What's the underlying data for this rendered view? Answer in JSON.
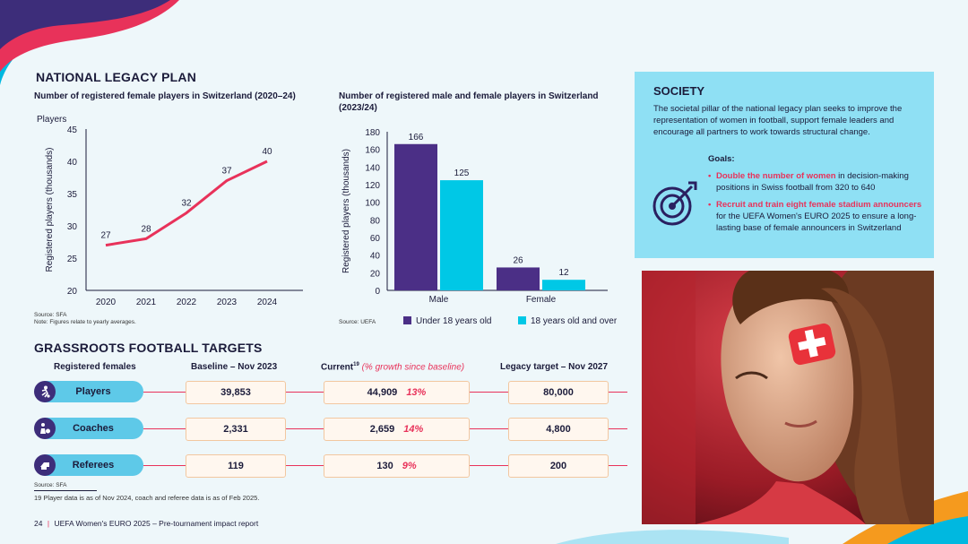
{
  "national": {
    "section_title": "NATIONAL LEGACY PLAN",
    "chart1_title": "Number of registered female players in Switzerland (2020–24)",
    "chart1_players_label": "Players",
    "chart1_source": "Source: SFA",
    "chart1_note": "Note: Figures relate to yearly averages.",
    "chart2_title_line1": "Number of registered male and female players in Switzerland",
    "chart2_title_line2": "(2023/24)",
    "chart2_source": "Source: UEFA"
  },
  "chart_data": [
    {
      "type": "line",
      "title": "Number of registered female players in Switzerland (2020–24)",
      "xlabel": "",
      "ylabel": "Registered players (thousands)",
      "x": [
        "2020",
        "2021",
        "2022",
        "2023",
        "2024"
      ],
      "values": [
        27,
        28,
        32,
        37,
        40
      ],
      "ylim": [
        20,
        45
      ],
      "yticks": [
        "20",
        "25",
        "30",
        "35",
        "40",
        "45"
      ],
      "color": "#e8325a"
    },
    {
      "type": "bar",
      "title": "Number of registered male and female players in Switzerland (2023/24)",
      "ylabel": "Registered players (thousands)",
      "categories": [
        "Male",
        "Female"
      ],
      "series": [
        {
          "name": "Under 18 years old",
          "values": [
            166,
            26
          ],
          "color": "#4b2f86"
        },
        {
          "name": "18 years old and over",
          "values": [
            125,
            12
          ],
          "color": "#00c8e6"
        }
      ],
      "ylim": [
        0,
        180
      ],
      "yticks": [
        "0",
        "20",
        "40",
        "60",
        "80",
        "100",
        "120",
        "140",
        "160",
        "180"
      ]
    }
  ],
  "society": {
    "title": "SOCIETY",
    "body": "The societal pillar of the national legacy plan seeks to improve the representation of women in football, support female leaders and encourage all partners to work towards structural change.",
    "goals_label": "Goals:",
    "goal1_bold": "Double the number of women",
    "goal1_rest": " in decision-making positions in Swiss football from 320 to 640",
    "goal2_bold": "Recruit and train eight female stadium announcers",
    "goal2_rest": " for the UEFA Women's EURO 2025 to ensure a long-lasting base of female announcers in Switzerland"
  },
  "grassroots": {
    "section_title": "GRASSROOTS FOOTBALL TARGETS",
    "col_registered": "Registered females",
    "col_baseline": "Baseline – Nov 2023",
    "col_current": "Current",
    "col_current_sup": "19",
    "col_current_note": " (% growth since baseline)",
    "col_target": "Legacy target – Nov 2027",
    "rows": [
      {
        "label": "Players",
        "baseline": "39,853",
        "current": "44,909",
        "growth": "13%",
        "target": "80,000"
      },
      {
        "label": "Coaches",
        "baseline": "2,331",
        "current": "2,659",
        "growth": "14%",
        "target": "4,800"
      },
      {
        "label": "Referees",
        "baseline": "119",
        "current": "130",
        "growth": "9%",
        "target": "200"
      }
    ],
    "source": "Source: SFA",
    "footnote": "19  Player data is as of Nov 2024, coach and referee data is as of Feb 2025."
  },
  "footer": {
    "page": "24",
    "sep": "|",
    "title": "UEFA Women's EURO 2025 – Pre-tournament impact report"
  }
}
